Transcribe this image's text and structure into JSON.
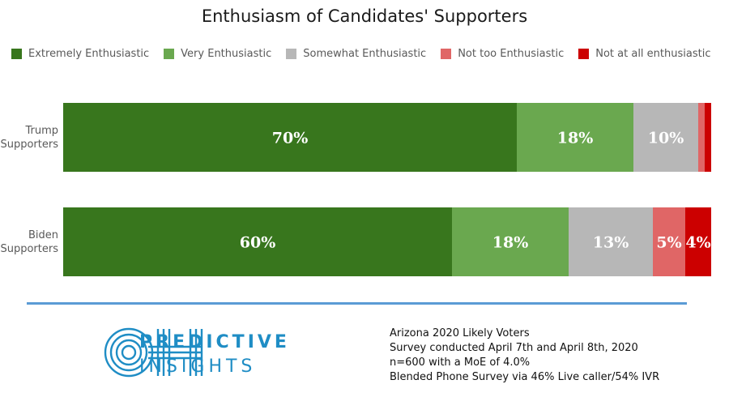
{
  "chart_data": {
    "type": "bar",
    "orientation": "horizontal",
    "stacked": true,
    "title": "Enthusiasm of Candidates' Supporters",
    "legend_position": "top",
    "categories": [
      "Trump Supporters",
      "Biden Supporters"
    ],
    "series": [
      {
        "name": "Extremely Enthusiastic",
        "color": "#38761d",
        "values": [
          70,
          60
        ],
        "labels": [
          "70%",
          "60%"
        ]
      },
      {
        "name": "Very Enthusiastic",
        "color": "#6aa84f",
        "values": [
          18,
          18
        ],
        "labels": [
          "18%",
          "18%"
        ]
      },
      {
        "name": "Somewhat Enthusiastic",
        "color": "#b7b7b7",
        "values": [
          10,
          13
        ],
        "labels": [
          "10%",
          "13%"
        ]
      },
      {
        "name": "Not too Enthusiastic",
        "color": "#e06666",
        "values": [
          1,
          5
        ],
        "labels": [
          "",
          "5%"
        ]
      },
      {
        "name": "Not at all enthusiastic",
        "color": "#cc0000",
        "values": [
          1,
          4
        ],
        "labels": [
          "",
          "4%"
        ]
      }
    ]
  },
  "footer": {
    "brand_top": "PREDICTIVE",
    "brand_bottom": "INSIGHTS",
    "notes": [
      "Arizona 2020 Likely Voters",
      "Survey conducted April 7th and April 8th, 2020",
      "n=600 with a MoE of 4.0%",
      "Blended Phone Survey via 46% Live caller/54% IVR"
    ]
  },
  "colors": {
    "divider": "#5b9bd5",
    "brand": "#1f8dc5"
  }
}
